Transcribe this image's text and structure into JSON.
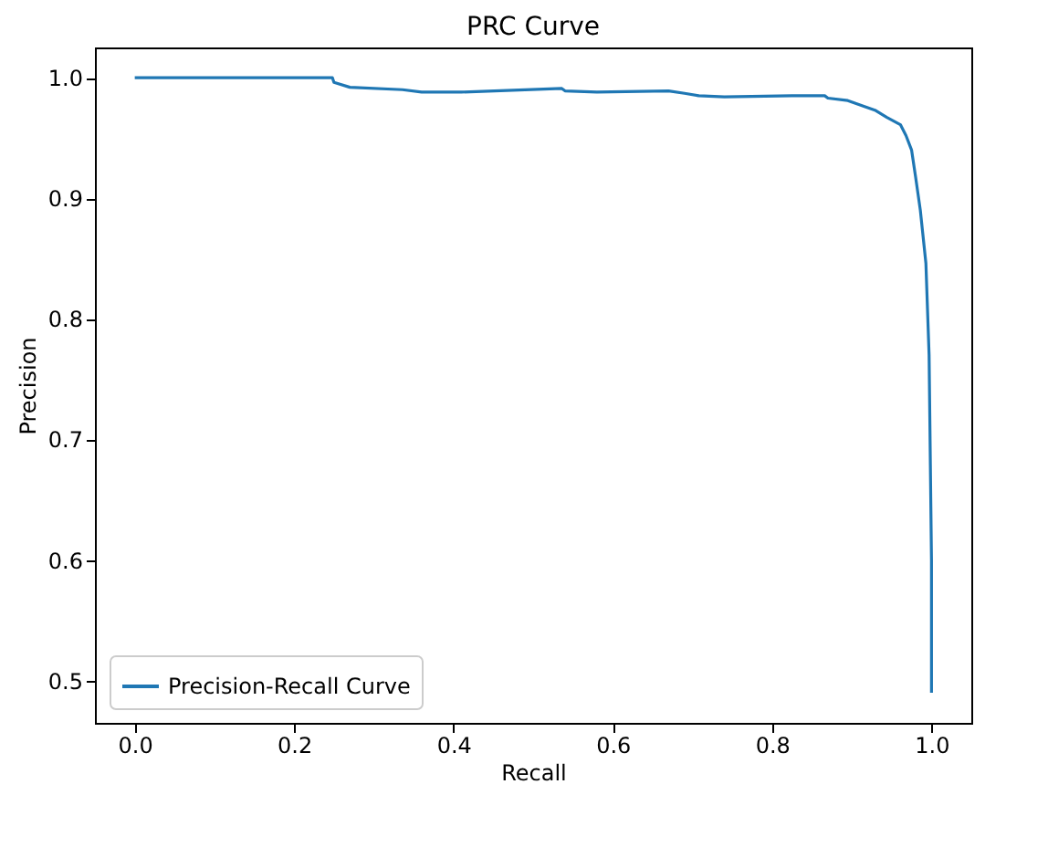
{
  "chart_data": {
    "type": "line",
    "title": "PRC Curve",
    "xlabel": "Recall",
    "ylabel": "Precision",
    "x": [
      0,
      0.248,
      0.25,
      0.27,
      0.336,
      0.36,
      0.41,
      0.536,
      0.54,
      0.58,
      0.67,
      0.69,
      0.708,
      0.74,
      0.825,
      0.866,
      0.87,
      0.895,
      0.916,
      0.929,
      0.944,
      0.961,
      0.968,
      0.975,
      0.98,
      0.986,
      0.993,
      0.997,
      1.0,
      1.0
    ],
    "series": [
      {
        "name": "Precision-Recall Curve",
        "color": "#1f77b4",
        "values": [
          1.0,
          1.0,
          0.996,
          0.992,
          0.99,
          0.988,
          0.988,
          0.991,
          0.989,
          0.988,
          0.989,
          0.987,
          0.985,
          0.984,
          0.985,
          0.985,
          0.983,
          0.981,
          0.976,
          0.973,
          0.967,
          0.961,
          0.952,
          0.94,
          0.918,
          0.89,
          0.846,
          0.77,
          0.6,
          0.49
        ]
      }
    ],
    "xlim": [
      -0.05,
      1.05
    ],
    "ylim": [
      0.465,
      1.025
    ],
    "xticks": [
      {
        "value": 0,
        "label": "0.0"
      },
      0.2,
      0.4,
      0.6,
      0.8,
      {
        "value": 1,
        "label": "1.0"
      }
    ],
    "yticks": [
      0.5,
      0.6,
      0.7,
      0.8,
      0.9,
      {
        "value": 1,
        "label": "1.0"
      }
    ],
    "legend": "bottom left"
  }
}
